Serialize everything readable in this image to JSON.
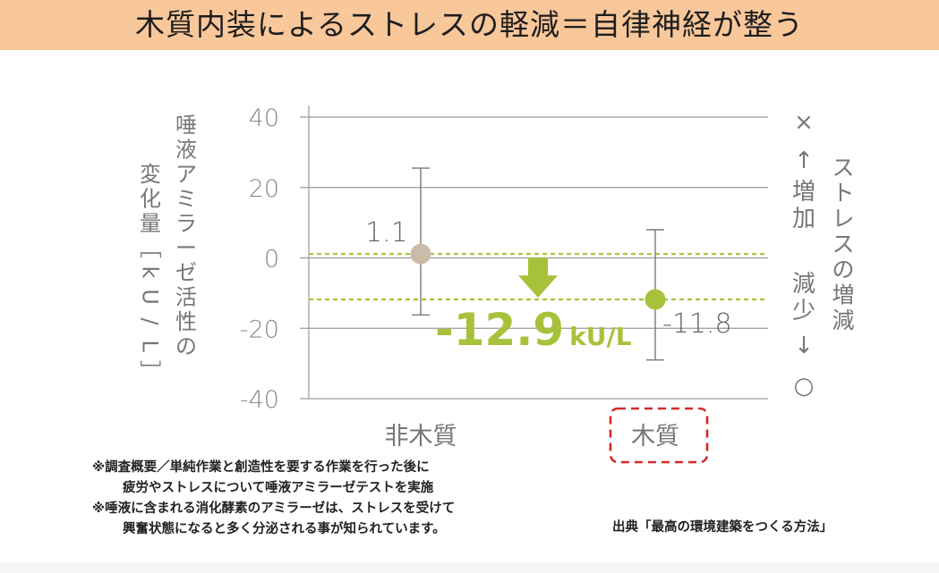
{
  "title": "木質内装によるストレスの軽減＝自律神経が整う",
  "chart_data": {
    "type": "scatter",
    "ylabel_lines": [
      "唾液アミラーゼ活性の",
      "変化量［kU/L］"
    ],
    "yticks": [
      "40",
      "20",
      "0",
      "-20",
      "-40"
    ],
    "ylim": [
      -40,
      40
    ],
    "categories": [
      "非木質",
      "木質"
    ],
    "points": [
      {
        "category": "非木質",
        "value": 1.1,
        "label": "1.1",
        "err_high": 25.5,
        "err_low": -16.2,
        "color": "#cbbcaa"
      },
      {
        "category": "木質",
        "value": -11.8,
        "label": "-11.8",
        "err_high": 8.0,
        "err_low": -29.0,
        "color": "#a7c23a"
      }
    ],
    "difference_label": "-12.9",
    "difference_unit": "kU/L",
    "accent_color": "#a7c23a",
    "right_axis": {
      "label": "ストレスの増減",
      "top": [
        "×",
        "↑",
        "増加"
      ],
      "bottom": [
        "減少",
        "↓",
        "○"
      ]
    },
    "highlight_category": "木質",
    "grid": true
  },
  "notes": [
    "※調査概要／単純作業と創造性を要する作業を行った後に",
    "疲労やストレスについて唾液アミラーゼテストを実施",
    "※唾液に含まれる消化酵素のアミラーゼは、ストレスを受けて",
    "興奮状態になると多く分泌される事が知られています。"
  ],
  "source": "出典「最高の環境建築をつくる方法」"
}
